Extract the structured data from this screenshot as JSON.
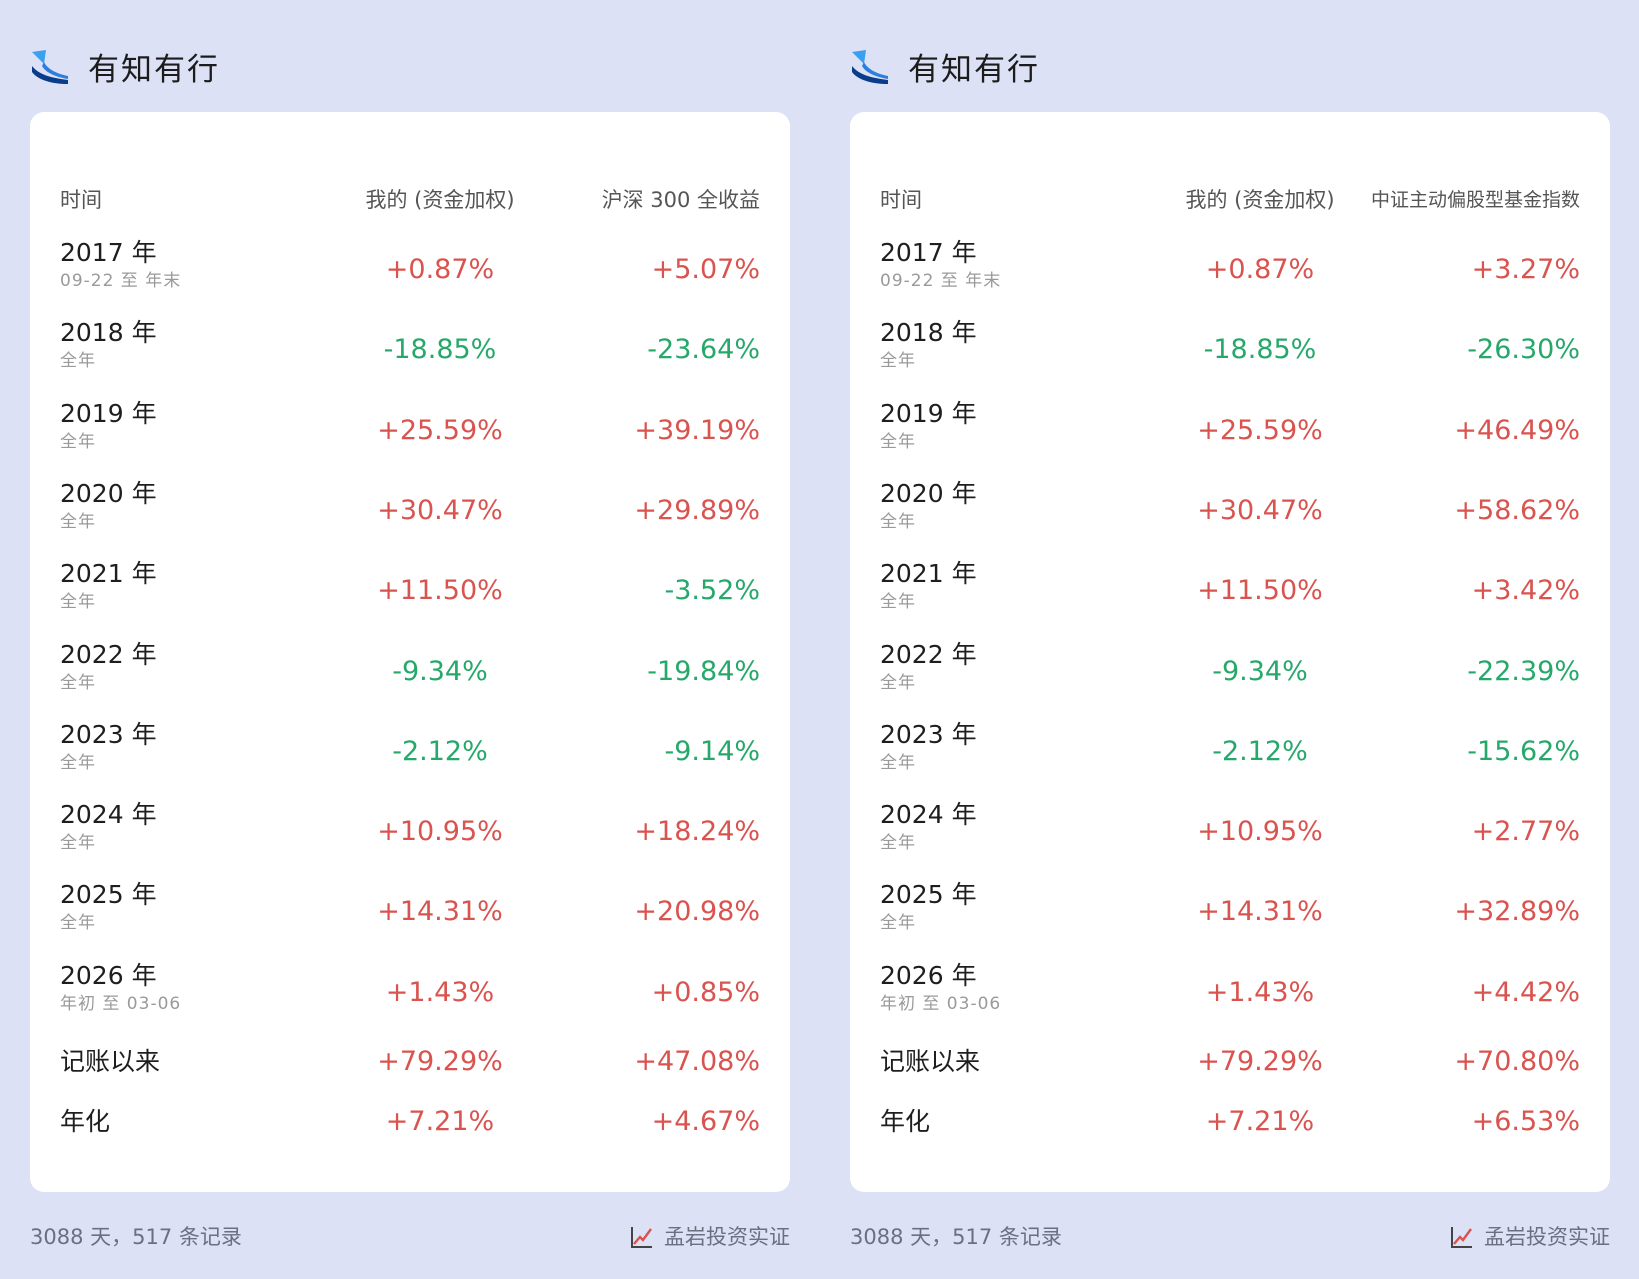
{
  "brand": {
    "title": "有知有行",
    "logo_icon": "wave-logo-icon"
  },
  "colors": {
    "positive": "#d9534f",
    "negative": "#26a86b",
    "background": "#dde1f5"
  },
  "panels": [
    {
      "headers": {
        "time": "时间",
        "mine": "我的 (资金加权)",
        "benchmark": "沪深 300 全收益"
      },
      "rows": [
        {
          "year": "2017 年",
          "sub": "09-22 至 年末",
          "mine": "+0.87%",
          "bench": "+5.07%"
        },
        {
          "year": "2018 年",
          "sub": "全年",
          "mine": "-18.85%",
          "bench": "-23.64%"
        },
        {
          "year": "2019 年",
          "sub": "全年",
          "mine": "+25.59%",
          "bench": "+39.19%"
        },
        {
          "year": "2020 年",
          "sub": "全年",
          "mine": "+30.47%",
          "bench": "+29.89%"
        },
        {
          "year": "2021 年",
          "sub": "全年",
          "mine": "+11.50%",
          "bench": "-3.52%"
        },
        {
          "year": "2022 年",
          "sub": "全年",
          "mine": "-9.34%",
          "bench": "-19.84%"
        },
        {
          "year": "2023 年",
          "sub": "全年",
          "mine": "-2.12%",
          "bench": "-9.14%"
        },
        {
          "year": "2024 年",
          "sub": "全年",
          "mine": "+10.95%",
          "bench": "+18.24%"
        },
        {
          "year": "2025 年",
          "sub": "全年",
          "mine": "+14.31%",
          "bench": "+20.98%"
        },
        {
          "year": "2026 年",
          "sub": "年初 至 03-06",
          "mine": "+1.43%",
          "bench": "+0.85%"
        }
      ],
      "summary": [
        {
          "label": "记账以来",
          "mine": "+79.29%",
          "bench": "+47.08%"
        },
        {
          "label": "年化",
          "mine": "+7.21%",
          "bench": "+4.67%"
        }
      ],
      "footer": {
        "stats": "3088 天，517 条记录",
        "cert": "孟岩投资实证",
        "cert_icon": "trend-chart-icon"
      }
    },
    {
      "headers": {
        "time": "时间",
        "mine": "我的 (资金加权)",
        "benchmark": "中证主动偏股型基金指数"
      },
      "rows": [
        {
          "year": "2017 年",
          "sub": "09-22 至 年末",
          "mine": "+0.87%",
          "bench": "+3.27%"
        },
        {
          "year": "2018 年",
          "sub": "全年",
          "mine": "-18.85%",
          "bench": "-26.30%"
        },
        {
          "year": "2019 年",
          "sub": "全年",
          "mine": "+25.59%",
          "bench": "+46.49%"
        },
        {
          "year": "2020 年",
          "sub": "全年",
          "mine": "+30.47%",
          "bench": "+58.62%"
        },
        {
          "year": "2021 年",
          "sub": "全年",
          "mine": "+11.50%",
          "bench": "+3.42%"
        },
        {
          "year": "2022 年",
          "sub": "全年",
          "mine": "-9.34%",
          "bench": "-22.39%"
        },
        {
          "year": "2023 年",
          "sub": "全年",
          "mine": "-2.12%",
          "bench": "-15.62%"
        },
        {
          "year": "2024 年",
          "sub": "全年",
          "mine": "+10.95%",
          "bench": "+2.77%"
        },
        {
          "year": "2025 年",
          "sub": "全年",
          "mine": "+14.31%",
          "bench": "+32.89%"
        },
        {
          "year": "2026 年",
          "sub": "年初 至 03-06",
          "mine": "+1.43%",
          "bench": "+4.42%"
        }
      ],
      "summary": [
        {
          "label": "记账以来",
          "mine": "+79.29%",
          "bench": "+70.80%"
        },
        {
          "label": "年化",
          "mine": "+7.21%",
          "bench": "+6.53%"
        }
      ],
      "footer": {
        "stats": "3088 天，517 条记录",
        "cert": "孟岩投资实证",
        "cert_icon": "trend-chart-icon"
      }
    }
  ]
}
